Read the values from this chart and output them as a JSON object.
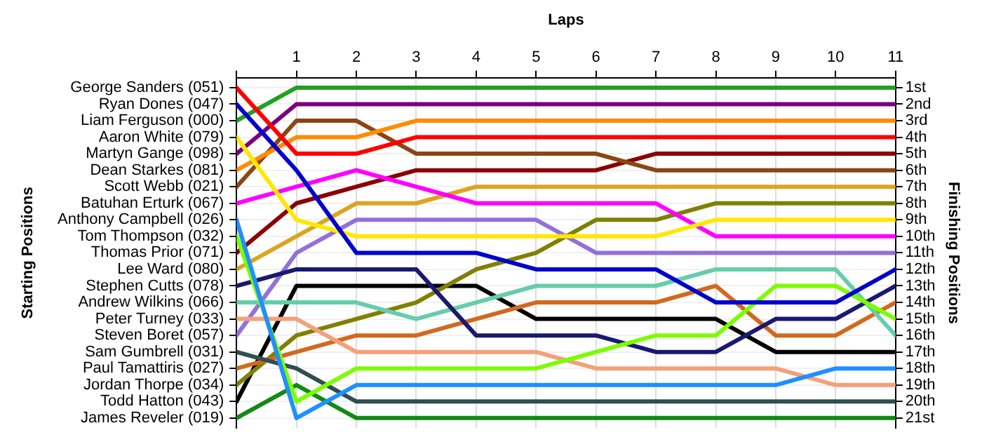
{
  "chart_data": {
    "type": "line",
    "xlabel": "Laps",
    "ylabel": "Finishing Positions",
    "x": [
      0,
      1,
      2,
      3,
      4,
      5,
      6,
      7,
      8,
      9,
      10,
      11
    ],
    "xlim": [
      0,
      11
    ],
    "xticks": [
      {
        "value": 0,
        "label": null
      },
      1,
      2,
      3,
      4,
      5,
      6,
      7,
      8,
      9,
      10,
      11
    ],
    "ylim": [
      21.6,
      0.4
    ],
    "yticks": [
      {
        "value": 1,
        "label": "1st"
      },
      {
        "value": 2,
        "label": "2nd"
      },
      {
        "value": 3,
        "label": "3rd"
      },
      {
        "value": 4,
        "label": "4th"
      },
      {
        "value": 5,
        "label": "5th"
      },
      {
        "value": 6,
        "label": "6th"
      },
      {
        "value": 7,
        "label": "7th"
      },
      {
        "value": 8,
        "label": "8th"
      },
      {
        "value": 9,
        "label": "9th"
      },
      {
        "value": 10,
        "label": "10th"
      },
      {
        "value": 11,
        "label": "11th"
      },
      {
        "value": 12,
        "label": "12th"
      },
      {
        "value": 13,
        "label": "13th"
      },
      {
        "value": 14,
        "label": "14th"
      },
      {
        "value": 15,
        "label": "15th"
      },
      {
        "value": 16,
        "label": "16th"
      },
      {
        "value": 17,
        "label": "17th"
      },
      {
        "value": 18,
        "label": "18th"
      },
      {
        "value": 19,
        "label": "19th"
      },
      {
        "value": 20,
        "label": "20th"
      },
      {
        "value": 21,
        "label": "21st"
      }
    ],
    "annotations": [
      "George Sanders (051)",
      "Ryan Dones (047)",
      "Liam Ferguson (000)",
      "Aaron White (079)",
      "Martyn Gange (098)",
      "Dean Starkes (081)",
      "Scott Webb (021)",
      "Batuhan Erturk (067)",
      "Anthony Campbell (026)",
      "Tom Thompson (032)",
      "Thomas Prior (071)",
      "Lee Ward (080)",
      "Stephen Cutts (078)",
      "Andrew Wilkins (066)",
      "Peter Turney (033)",
      "Steven Boret (057)",
      "Sam Gumbrell (031)",
      "Paul Tamattiris (027)",
      "Jordan Thorpe (034)",
      "Todd Hatton (043)",
      "James Reveler (019)",
      "Starting Positions"
    ],
    "grid": true,
    "marker": "none",
    "line_style": "solid",
    "series": [
      {
        "color": "#ff0000",
        "values": [
          1,
          5,
          5,
          4,
          4,
          4,
          4,
          4,
          4,
          4,
          4,
          4
        ]
      },
      {
        "color": "#0000cd",
        "values": [
          2,
          6,
          11,
          11,
          11,
          12,
          12,
          12,
          14,
          14,
          14,
          12
        ]
      },
      {
        "color": "#22a022",
        "values": [
          3,
          1,
          1,
          1,
          1,
          1,
          1,
          1,
          1,
          1,
          1,
          1
        ]
      },
      {
        "color": "#ffe800",
        "values": [
          4,
          9,
          10,
          10,
          10,
          10,
          10,
          10,
          9,
          9,
          9,
          9
        ]
      },
      {
        "color": "#7b0080",
        "values": [
          5,
          2,
          2,
          2,
          2,
          2,
          2,
          2,
          2,
          2,
          2,
          2
        ]
      },
      {
        "color": "#ff8c00",
        "values": [
          6,
          4,
          4,
          3,
          3,
          3,
          3,
          3,
          3,
          3,
          3,
          3
        ]
      },
      {
        "color": "#8b4513",
        "values": [
          7,
          3,
          3,
          5,
          5,
          5,
          5,
          6,
          6,
          6,
          6,
          6
        ]
      },
      {
        "color": "#ff00ff",
        "values": [
          8,
          7,
          6,
          7,
          8,
          8,
          8,
          8,
          10,
          10,
          10,
          10
        ]
      },
      {
        "color": "#1e90ff",
        "values": [
          9,
          21,
          19,
          19,
          19,
          19,
          19,
          19,
          19,
          19,
          18,
          18
        ]
      },
      {
        "color": "#7cfc00",
        "values": [
          10,
          20,
          18,
          18,
          18,
          18,
          17,
          16,
          16,
          13,
          13,
          15
        ]
      },
      {
        "color": "#8b0000",
        "values": [
          11,
          8,
          7,
          6,
          6,
          6,
          6,
          5,
          5,
          5,
          5,
          5
        ]
      },
      {
        "color": "#daa520",
        "values": [
          12,
          10,
          8,
          8,
          7,
          7,
          7,
          7,
          7,
          7,
          7,
          7
        ]
      },
      {
        "color": "#191970",
        "values": [
          13,
          12,
          12,
          12,
          16,
          16,
          16,
          17,
          17,
          15,
          15,
          13
        ]
      },
      {
        "color": "#66cdaa",
        "values": [
          14,
          14,
          14,
          15,
          14,
          13,
          13,
          13,
          12,
          12,
          12,
          16
        ]
      },
      {
        "color": "#f4a07a",
        "values": [
          15,
          15,
          17,
          17,
          17,
          17,
          18,
          18,
          18,
          18,
          19,
          19
        ]
      },
      {
        "color": "#9370db",
        "values": [
          16,
          11,
          9,
          9,
          9,
          9,
          11,
          11,
          11,
          11,
          11,
          11
        ]
      },
      {
        "color": "#2f4f4f",
        "values": [
          17,
          18,
          20,
          20,
          20,
          20,
          20,
          20,
          20,
          20,
          20,
          20
        ]
      },
      {
        "color": "#d2691e",
        "values": [
          18,
          17,
          16,
          16,
          15,
          14,
          14,
          14,
          13,
          16,
          16,
          14
        ]
      },
      {
        "color": "#808000",
        "values": [
          19,
          16,
          15,
          14,
          12,
          11,
          9,
          9,
          8,
          8,
          8,
          8
        ]
      },
      {
        "color": "#000000",
        "values": [
          20,
          13,
          13,
          13,
          13,
          15,
          15,
          15,
          15,
          17,
          17,
          17
        ]
      },
      {
        "color": "#118a11",
        "values": [
          21,
          19,
          21,
          21,
          21,
          21,
          21,
          21,
          21,
          21,
          21,
          21
        ]
      }
    ]
  }
}
